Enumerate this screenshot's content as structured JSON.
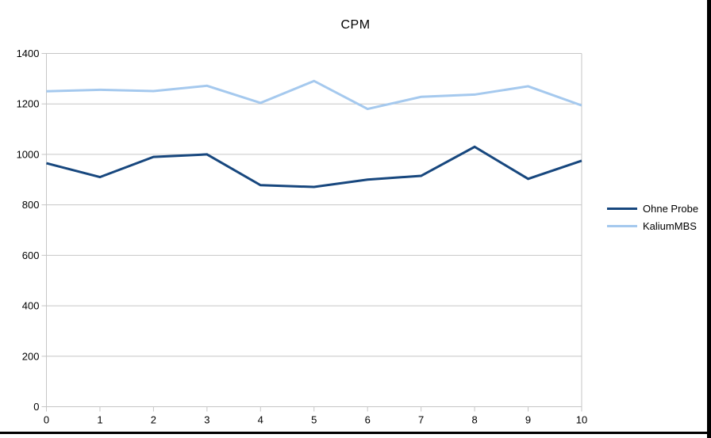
{
  "window": {
    "background": "#ffffff",
    "frame_color": "#000000"
  },
  "chart_data": {
    "type": "line",
    "title": "CPM",
    "xlabel": "",
    "ylabel": "",
    "xlim": [
      0,
      10
    ],
    "ylim": [
      0,
      1400
    ],
    "x": [
      0,
      1,
      2,
      3,
      4,
      5,
      6,
      7,
      8,
      9,
      10
    ],
    "x_tick_labels": [
      "0",
      "1",
      "2",
      "3",
      "4",
      "5",
      "6",
      "7",
      "8",
      "9",
      "10"
    ],
    "y_ticks": [
      0,
      200,
      400,
      600,
      800,
      1000,
      1200,
      1400
    ],
    "y_tick_labels": [
      "0",
      "200",
      "400",
      "600",
      "800",
      "1000",
      "1200",
      "1400"
    ],
    "grid": "horizontal",
    "legend_position": "right",
    "series": [
      {
        "name": "Ohne Probe",
        "color": "#17477E",
        "values": [
          965,
          910,
          990,
          1000,
          878,
          871,
          900,
          915,
          1030,
          903,
          975
        ]
      },
      {
        "name": "KaliumMBS",
        "color": "#A5C9EE",
        "values": [
          1250,
          1256,
          1251,
          1272,
          1204,
          1291,
          1180,
          1228,
          1237,
          1270,
          1194
        ]
      }
    ],
    "style": {
      "grid_color": "#C6C6C6",
      "axis_color": "#C6C6C6",
      "text_color": "#000000",
      "line_width": 3
    }
  }
}
